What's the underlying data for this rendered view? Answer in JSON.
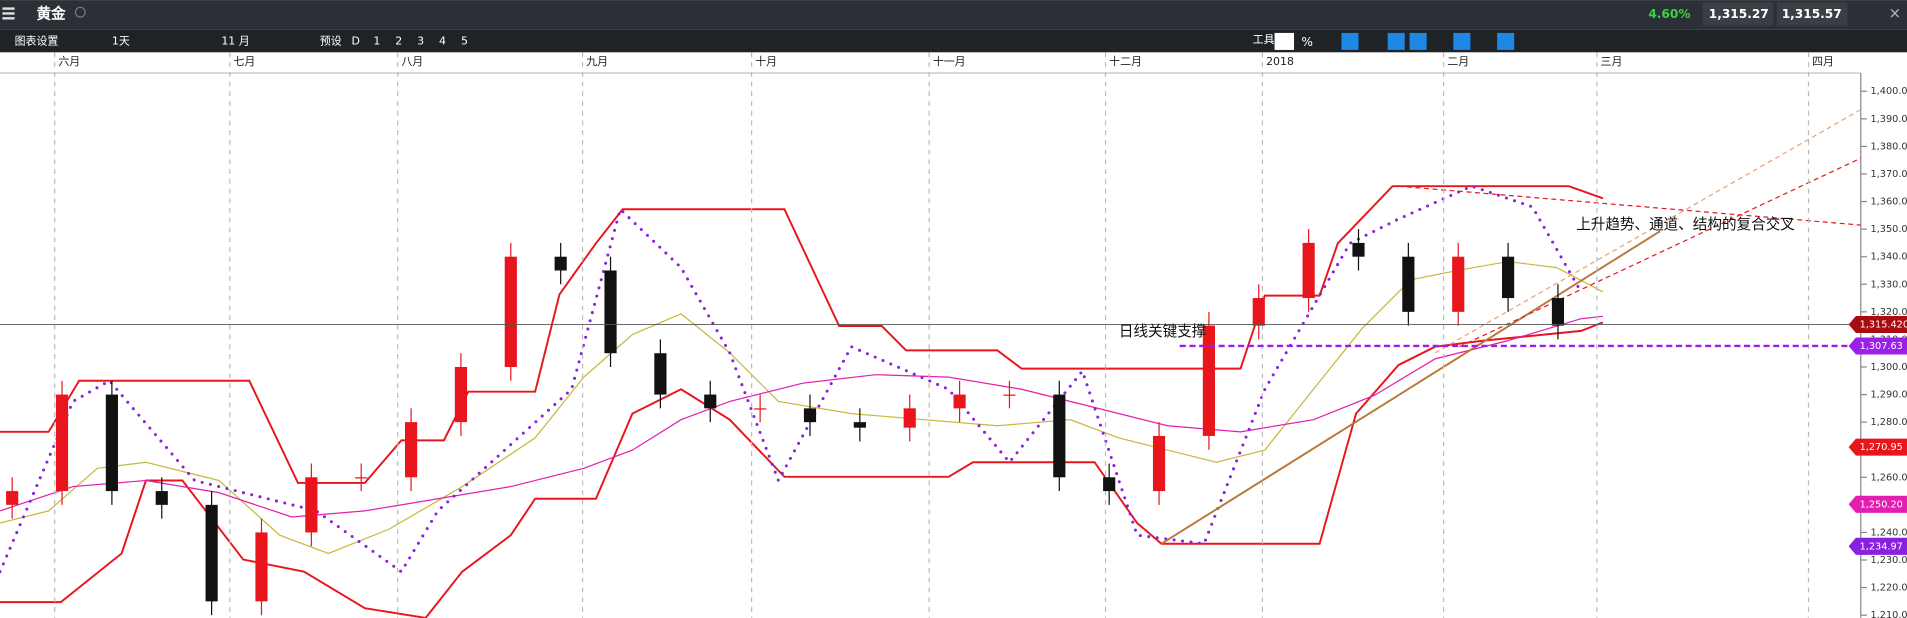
{
  "header": {
    "title": "黄金",
    "change": "4.60%",
    "bid": "1,315.27",
    "ask": "1,315.57"
  },
  "toolbar": {
    "settings": "图表设置",
    "interval": "1天",
    "range": "11 月",
    "preset": "预设",
    "periods": [
      "D",
      "1",
      "2",
      "3",
      "4",
      "5"
    ],
    "tools": "工具",
    "percent": "%"
  },
  "chart_data": {
    "type": "candlestick",
    "categories": [
      "六月",
      "七月",
      "八月",
      "九月",
      "十月",
      "十一月",
      "十二月",
      "2018",
      "二月",
      "三月",
      "四月"
    ],
    "open": [
      1250,
      1255,
      1290,
      1255,
      1250,
      1215,
      1240,
      1260,
      1260,
      1280,
      1300,
      1340,
      1335,
      1305,
      1290,
      1285,
      1285,
      1280,
      1278,
      1285,
      1290,
      1290,
      1260,
      1255,
      1275,
      1315,
      1325,
      1345,
      1340,
      1320,
      1340,
      1325
    ],
    "high": [
      1260,
      1295,
      1295,
      1260,
      1255,
      1245,
      1265,
      1265,
      1285,
      1305,
      1345,
      1345,
      1340,
      1310,
      1295,
      1290,
      1290,
      1285,
      1290,
      1295,
      1295,
      1295,
      1265,
      1280,
      1320,
      1330,
      1350,
      1350,
      1345,
      1345,
      1345,
      1330
    ],
    "low": [
      1245,
      1250,
      1250,
      1245,
      1210,
      1210,
      1235,
      1255,
      1255,
      1275,
      1295,
      1330,
      1300,
      1285,
      1280,
      1280,
      1275,
      1273,
      1273,
      1280,
      1285,
      1255,
      1250,
      1250,
      1270,
      1310,
      1320,
      1335,
      1315,
      1315,
      1320,
      1310
    ],
    "close": [
      1255,
      1290,
      1255,
      1250,
      1215,
      1240,
      1260,
      1260,
      1280,
      1300,
      1340,
      1335,
      1305,
      1290,
      1285,
      1285,
      1280,
      1278,
      1285,
      1290,
      1290,
      1260,
      1255,
      1275,
      1315,
      1325,
      1345,
      1340,
      1320,
      1340,
      1325,
      1315
    ],
    "up_color": "#e8161c",
    "down_color": "#111111",
    "ylim": [
      1209,
      1406.6
    ],
    "yticks": [
      {
        "value": 1210,
        "label": "1,210.00"
      },
      {
        "value": 1220,
        "label": "1,220.00"
      },
      {
        "value": 1230,
        "label": "1,230.00"
      },
      {
        "value": 1240,
        "label": "1,240.00"
      },
      {
        "value": 1250,
        "label": "1,250.00"
      },
      {
        "value": 1260,
        "label": "1,260.00"
      },
      {
        "value": 1270,
        "label": "1,270.00"
      },
      {
        "value": 1280,
        "label": "1,280.00"
      },
      {
        "value": 1290,
        "label": "1,290.00"
      },
      {
        "value": 1300,
        "label": "1,300.00"
      },
      {
        "value": 1310,
        "label": "1,310.00"
      },
      {
        "value": 1320,
        "label": "1,320.00"
      },
      {
        "value": 1330,
        "label": "1,330.00"
      },
      {
        "value": 1340,
        "label": "1,340.00"
      },
      {
        "value": 1350,
        "label": "1,350.00"
      },
      {
        "value": 1360,
        "label": "1,360.00"
      },
      {
        "value": 1370,
        "label": "1,370.00"
      },
      {
        "value": 1380,
        "label": "1,380.00"
      },
      {
        "value": 1390,
        "label": "1,390.00"
      },
      {
        "value": 1400,
        "label": "1,400.00"
      }
    ],
    "price_tags": [
      {
        "value": 1315.42,
        "label": "1,315.420",
        "color": "#a80c10"
      },
      {
        "value": 1307.63,
        "label": "1,307.63",
        "color": "#9b1fe8"
      },
      {
        "value": 1270.95,
        "label": "1,270.95",
        "color": "#e8161c"
      },
      {
        "value": 1250.2,
        "label": "1,250.20",
        "color": "#e21fb0"
      },
      {
        "value": 1234.97,
        "label": "1,234.97",
        "color": "#8a1fe0"
      }
    ],
    "annotations": [
      "上升趋势、通道、结构的复合交叉",
      "日线关键支撑"
    ]
  }
}
